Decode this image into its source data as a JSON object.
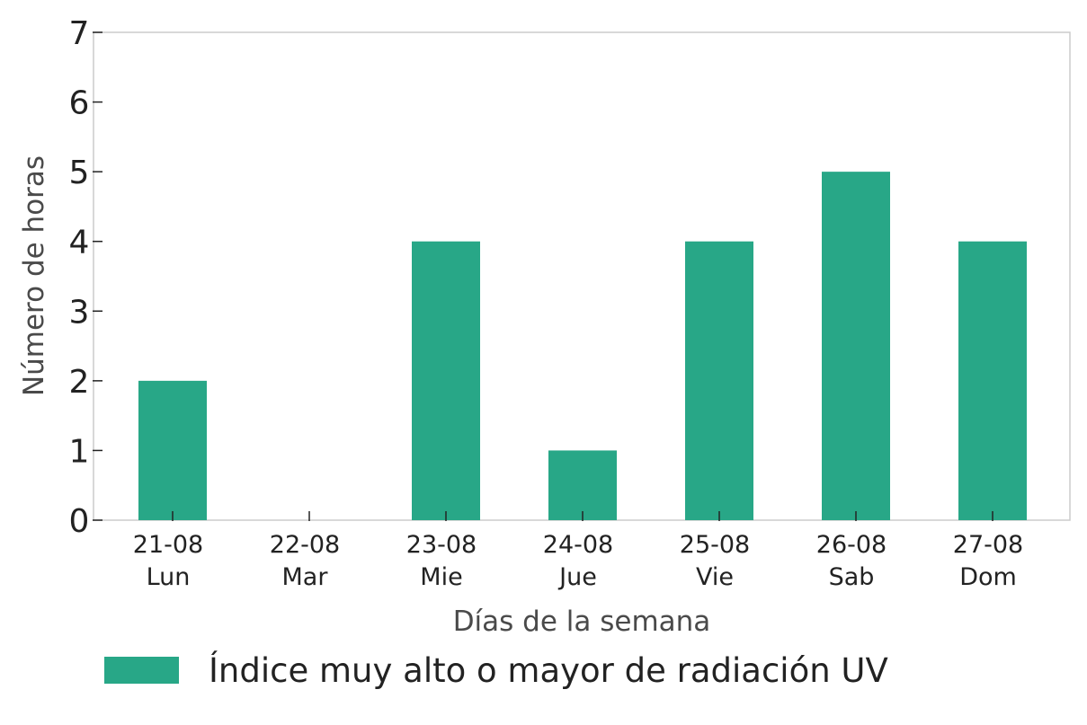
{
  "chart_data": {
    "type": "bar",
    "title": "",
    "categories": [
      {
        "date": "21-08",
        "day": "Lun"
      },
      {
        "date": "22-08",
        "day": "Mar"
      },
      {
        "date": "23-08",
        "day": "Mie"
      },
      {
        "date": "24-08",
        "day": "Jue"
      },
      {
        "date": "25-08",
        "day": "Vie"
      },
      {
        "date": "26-08",
        "day": "Sab"
      },
      {
        "date": "27-08",
        "day": "Dom"
      }
    ],
    "series": [
      {
        "name": "Índice muy alto o mayor de radiación UV",
        "color": "#28a787",
        "values": [
          2,
          0,
          4,
          1,
          4,
          5,
          4
        ]
      }
    ],
    "xlabel": "Días de la semana",
    "ylabel": "Número de horas",
    "ylim": [
      0,
      7
    ],
    "yticks": [
      0,
      1,
      2,
      3,
      4,
      5,
      6,
      7
    ],
    "grid": false,
    "legend_position": "bottom"
  }
}
